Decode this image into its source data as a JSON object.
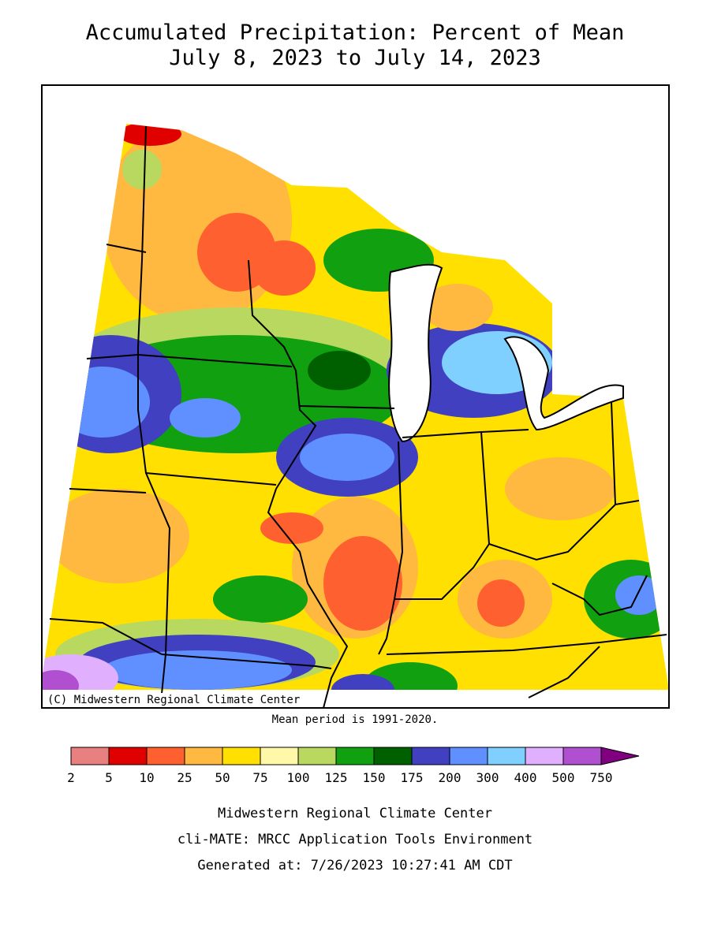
{
  "header": {
    "title": "Accumulated Precipitation: Percent of Mean",
    "subtitle": "July 8, 2023 to July 14, 2023"
  },
  "map": {
    "credit": "(C) Midwestern Regional Climate Center",
    "note": "Mean period is 1991-2020."
  },
  "legend": {
    "bounds": [
      2,
      5,
      10,
      25,
      50,
      75,
      100,
      125,
      150,
      175,
      200,
      300,
      400,
      500,
      750
    ],
    "colors": [
      "#e88080",
      "#e00000",
      "#ff6030",
      "#ffb840",
      "#ffe000",
      "#fff8a8",
      "#b8d860",
      "#10a010",
      "#006000",
      "#4040c0",
      "#6090ff",
      "#80d0ff",
      "#e0b0ff",
      "#b050d0"
    ],
    "over_color": "#800080"
  },
  "footer": {
    "lines": [
      "Midwestern Regional Climate Center",
      "cli-MATE: MRCC Application Tools Environment",
      "Generated at: 7/26/2023 10:27:41 AM CDT"
    ]
  }
}
